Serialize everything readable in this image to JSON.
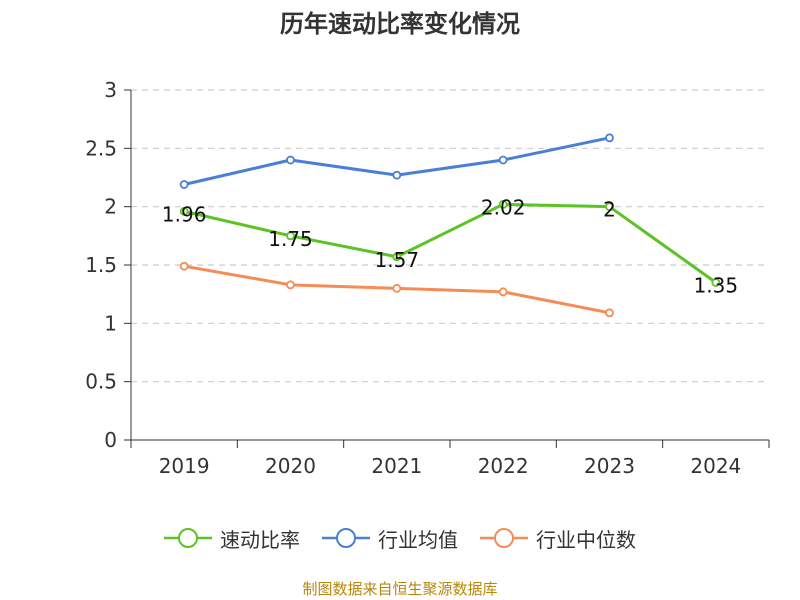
{
  "chart_data": {
    "type": "line",
    "title": "历年速动比率变化情况",
    "categories": [
      "2019",
      "2020",
      "2021",
      "2022",
      "2023",
      "2024"
    ],
    "ylim": [
      0,
      3
    ],
    "yticks": [
      0,
      0.5,
      1,
      1.5,
      2,
      2.5,
      3
    ],
    "grid": true,
    "legend_position": "bottom",
    "series": [
      {
        "name": "速动比率",
        "color": "#5cc325",
        "values": [
          1.96,
          1.75,
          1.57,
          2.02,
          2,
          1.35
        ],
        "labels": [
          "1.96",
          "1.75",
          "1.57",
          "2.02",
          "2",
          "1.35"
        ]
      },
      {
        "name": "行业均值",
        "color": "#4a7fd6",
        "values": [
          2.19,
          2.4,
          2.27,
          2.4,
          2.59,
          null
        ]
      },
      {
        "name": "行业中位数",
        "color": "#f58c57",
        "values": [
          1.49,
          1.33,
          1.3,
          1.27,
          1.09,
          null
        ]
      }
    ],
    "source": "制图数据来自恒生聚源数据库"
  }
}
